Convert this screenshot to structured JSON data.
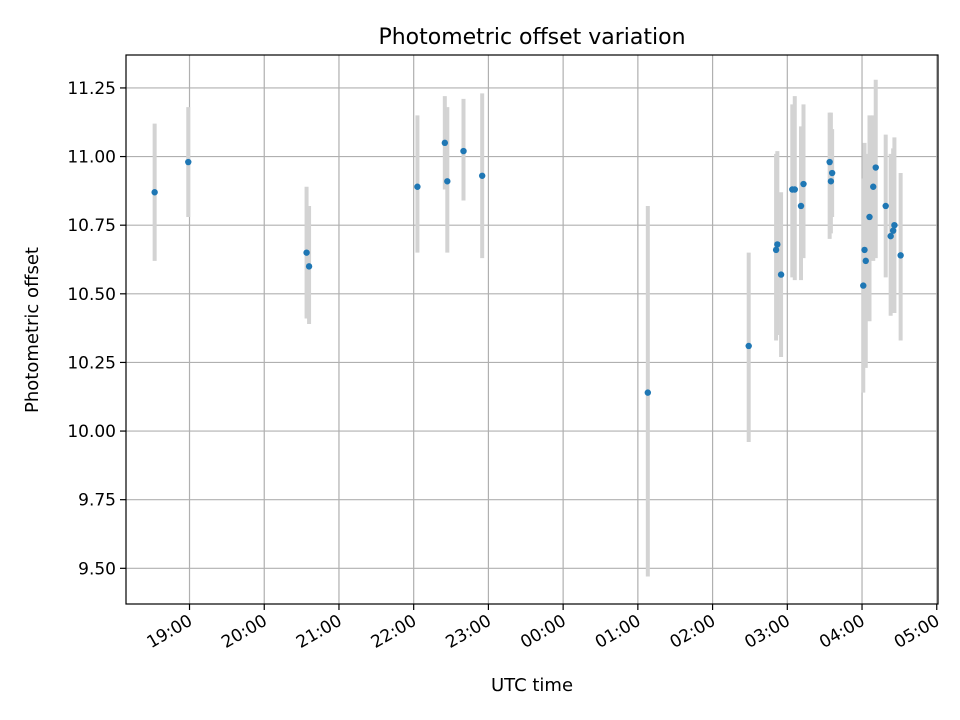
{
  "chart_data": {
    "type": "scatter",
    "title": "Photometric offset variation",
    "xlabel": "UTC time",
    "ylabel": "Photometric offset",
    "x_unit": "UTC time (HH:MM), night spanning midnight",
    "xlim": [
      "18:09",
      "05:01"
    ],
    "ylim": [
      9.37,
      11.37
    ],
    "grid": true,
    "x_ticks": [
      "19:00",
      "20:00",
      "21:00",
      "22:00",
      "23:00",
      "00:00",
      "01:00",
      "02:00",
      "03:00",
      "04:00",
      "05:00"
    ],
    "y_ticks": [
      "9.50",
      "9.75",
      "10.00",
      "10.25",
      "10.50",
      "10.75",
      "11.00",
      "11.25"
    ],
    "colors": {
      "points": "#1f77b4",
      "errorbars": "#d3d3d3",
      "grid": "#b0b0b0"
    },
    "points": [
      {
        "x": "18:32",
        "y": 10.87,
        "ylow": 10.62,
        "yhigh": 11.12
      },
      {
        "x": "18:59",
        "y": 10.98,
        "ylow": 10.78,
        "yhigh": 11.18
      },
      {
        "x": "20:34",
        "y": 10.65,
        "ylow": 10.41,
        "yhigh": 10.89
      },
      {
        "x": "20:36",
        "y": 10.6,
        "ylow": 10.39,
        "yhigh": 10.82
      },
      {
        "x": "22:03",
        "y": 10.89,
        "ylow": 10.65,
        "yhigh": 11.15
      },
      {
        "x": "22:25",
        "y": 11.05,
        "ylow": 10.88,
        "yhigh": 11.22
      },
      {
        "x": "22:27",
        "y": 10.91,
        "ylow": 10.65,
        "yhigh": 11.18
      },
      {
        "x": "22:40",
        "y": 11.02,
        "ylow": 10.84,
        "yhigh": 11.21
      },
      {
        "x": "22:55",
        "y": 10.93,
        "ylow": 10.63,
        "yhigh": 11.23
      },
      {
        "x": "01:08",
        "y": 10.14,
        "ylow": 9.47,
        "yhigh": 10.82
      },
      {
        "x": "02:29",
        "y": 10.31,
        "ylow": 9.96,
        "yhigh": 10.65
      },
      {
        "x": "02:51",
        "y": 10.66,
        "ylow": 10.33,
        "yhigh": 11.01
      },
      {
        "x": "02:52",
        "y": 10.68,
        "ylow": 10.35,
        "yhigh": 11.02
      },
      {
        "x": "02:55",
        "y": 10.57,
        "ylow": 10.27,
        "yhigh": 10.87
      },
      {
        "x": "03:04",
        "y": 10.88,
        "ylow": 10.56,
        "yhigh": 11.19
      },
      {
        "x": "03:06",
        "y": 10.88,
        "ylow": 10.55,
        "yhigh": 11.22
      },
      {
        "x": "03:11",
        "y": 10.82,
        "ylow": 10.55,
        "yhigh": 11.11
      },
      {
        "x": "03:13",
        "y": 10.9,
        "ylow": 10.63,
        "yhigh": 11.19
      },
      {
        "x": "03:34",
        "y": 10.98,
        "ylow": 10.7,
        "yhigh": 11.16
      },
      {
        "x": "03:35",
        "y": 10.91,
        "ylow": 10.72,
        "yhigh": 11.16
      },
      {
        "x": "03:36",
        "y": 10.94,
        "ylow": 10.78,
        "yhigh": 11.1
      },
      {
        "x": "04:01",
        "y": 10.53,
        "ylow": 10.14,
        "yhigh": 10.92
      },
      {
        "x": "04:02",
        "y": 10.66,
        "ylow": 10.26,
        "yhigh": 11.05
      },
      {
        "x": "04:03",
        "y": 10.62,
        "ylow": 10.23,
        "yhigh": 11.01
      },
      {
        "x": "04:06",
        "y": 10.78,
        "ylow": 10.4,
        "yhigh": 11.15
      },
      {
        "x": "04:09",
        "y": 10.89,
        "ylow": 10.62,
        "yhigh": 11.15
      },
      {
        "x": "04:11",
        "y": 10.96,
        "ylow": 10.63,
        "yhigh": 11.28
      },
      {
        "x": "04:19",
        "y": 10.82,
        "ylow": 10.56,
        "yhigh": 11.08
      },
      {
        "x": "04:23",
        "y": 10.71,
        "ylow": 10.42,
        "yhigh": 11.01
      },
      {
        "x": "04:25",
        "y": 10.73,
        "ylow": 10.43,
        "yhigh": 11.03
      },
      {
        "x": "04:26",
        "y": 10.75,
        "ylow": 10.43,
        "yhigh": 11.07
      },
      {
        "x": "04:31",
        "y": 10.64,
        "ylow": 10.33,
        "yhigh": 10.94
      }
    ]
  }
}
